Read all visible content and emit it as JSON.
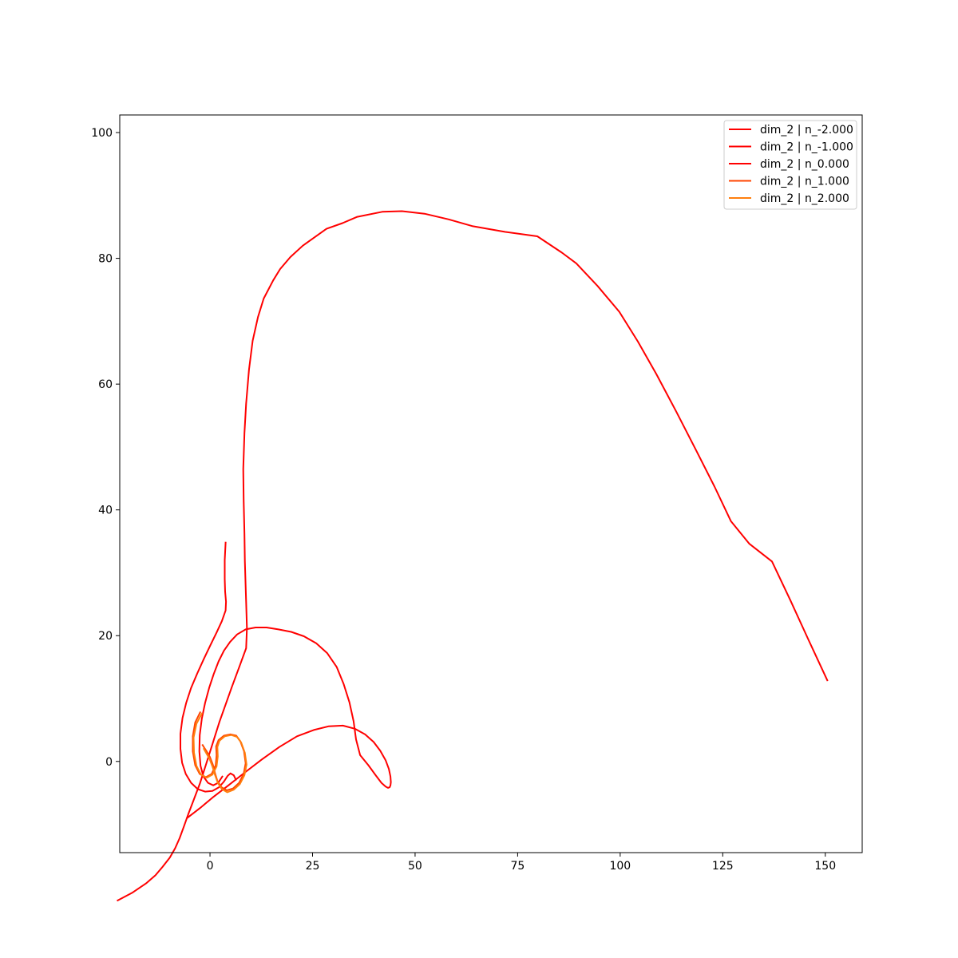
{
  "chart_data": {
    "type": "line",
    "title": "",
    "xlabel": "",
    "ylabel": "",
    "xlim": [
      -22,
      159
    ],
    "ylim": [
      -14.5,
      102.8
    ],
    "x_ticks": [
      0,
      25,
      50,
      75,
      100,
      125,
      150
    ],
    "y_ticks": [
      0,
      20,
      40,
      60,
      80,
      100
    ],
    "x_tick_labels": [
      "0",
      "25",
      "50",
      "75",
      "100",
      "125",
      "150"
    ],
    "y_tick_labels": [
      "0",
      "20",
      "40",
      "60",
      "80",
      "100"
    ],
    "grid": false,
    "legend_position": "top-right",
    "series": [
      {
        "name": "dim_2 | n_-2.000",
        "color": "#ff0000",
        "points": [
          [
            150.5,
            12.9
          ],
          [
            146,
            19.2
          ],
          [
            141.5,
            25.6
          ],
          [
            137,
            31.8
          ],
          [
            131.5,
            34.6
          ],
          [
            127,
            38.2
          ],
          [
            123,
            43.7
          ],
          [
            118.5,
            49.5
          ],
          [
            113.7,
            55.6
          ],
          [
            108.8,
            61.6
          ],
          [
            104.3,
            66.8
          ],
          [
            99.8,
            71.5
          ],
          [
            94.5,
            75.6
          ],
          [
            89.3,
            79.2
          ],
          [
            85.8,
            80.9
          ],
          [
            79.8,
            83.5
          ],
          [
            72.0,
            84.2
          ],
          [
            64.1,
            85.1
          ],
          [
            58.2,
            86.2
          ],
          [
            52.3,
            87.1
          ],
          [
            46.8,
            87.5
          ],
          [
            42.0,
            87.4
          ],
          [
            35.9,
            86.6
          ],
          [
            32.3,
            85.6
          ],
          [
            28.4,
            84.7
          ],
          [
            25.6,
            83.4
          ],
          [
            22.6,
            82.0
          ],
          [
            19.6,
            80.2
          ],
          [
            17.1,
            78.3
          ],
          [
            15.4,
            76.5
          ],
          [
            13.1,
            73.6
          ],
          [
            11.7,
            70.7
          ],
          [
            10.4,
            66.9
          ],
          [
            9.5,
            62.3
          ],
          [
            8.8,
            56.9
          ],
          [
            8.4,
            52.2
          ],
          [
            8.1,
            46.5
          ],
          [
            8.2,
            41.6
          ],
          [
            8.4,
            36.2
          ],
          [
            8.5,
            31.9
          ],
          [
            8.8,
            25.4
          ],
          [
            9.0,
            21.2
          ],
          [
            8.8,
            18.0
          ],
          [
            7.3,
            15.3
          ],
          [
            5.3,
            11.8
          ],
          [
            2.3,
            6.3
          ],
          [
            -0.3,
            0.9
          ],
          [
            -2.4,
            -3.4
          ],
          [
            -3.9,
            -6.0
          ],
          [
            -5.3,
            -8.4
          ],
          [
            -6.4,
            -10.4
          ],
          [
            -7.4,
            -12.2
          ],
          [
            -8.5,
            -13.8
          ],
          [
            -9.8,
            -15.3
          ],
          [
            -11.6,
            -16.8
          ],
          [
            -13.3,
            -18.1
          ],
          [
            -15.6,
            -19.4
          ],
          [
            -19.0,
            -20.9
          ],
          [
            -22.5,
            -22.1
          ]
        ]
      },
      {
        "name": "dim_2 | n_-1.000",
        "color": "#ff0000",
        "points": [
          [
            3.8,
            34.8
          ],
          [
            3.6,
            32.0
          ],
          [
            3.6,
            29.0
          ],
          [
            3.7,
            27.0
          ],
          [
            3.9,
            25.4
          ],
          [
            3.8,
            24.0
          ],
          [
            2.9,
            22.3
          ],
          [
            1.6,
            20.5
          ],
          [
            0.1,
            18.5
          ],
          [
            -1.5,
            16.3
          ],
          [
            -3.1,
            14.0
          ],
          [
            -4.6,
            11.7
          ],
          [
            -5.8,
            9.3
          ],
          [
            -6.7,
            6.9
          ],
          [
            -7.2,
            4.4
          ],
          [
            -7.2,
            2.0
          ],
          [
            -6.8,
            -0.2
          ],
          [
            -5.9,
            -2.0
          ],
          [
            -4.6,
            -3.4
          ],
          [
            -3.0,
            -4.4
          ],
          [
            -1.2,
            -4.8
          ],
          [
            0.6,
            -4.7
          ],
          [
            2.2,
            -4.1
          ],
          [
            3.4,
            -3.2
          ],
          [
            4.3,
            -2.3
          ],
          [
            5.0,
            -1.9
          ],
          [
            5.8,
            -2.2
          ],
          [
            6.3,
            -2.9
          ]
        ]
      },
      {
        "name": "dim_2 | n_0.000",
        "color": "#ff0000",
        "points": [
          [
            -5.6,
            -9.0
          ],
          [
            -2.4,
            -7.4
          ],
          [
            0.9,
            -5.6
          ],
          [
            4.5,
            -3.8
          ],
          [
            8.4,
            -1.8
          ],
          [
            12.6,
            0.3
          ],
          [
            16.9,
            2.3
          ],
          [
            21.2,
            4.0
          ],
          [
            25.3,
            5.0
          ],
          [
            29.0,
            5.6
          ],
          [
            32.4,
            5.7
          ],
          [
            35.3,
            5.2
          ],
          [
            37.8,
            4.3
          ],
          [
            39.9,
            3.1
          ],
          [
            41.5,
            1.7
          ],
          [
            42.8,
            0.2
          ],
          [
            43.6,
            -1.2
          ],
          [
            44.0,
            -2.4
          ],
          [
            44.1,
            -3.3
          ],
          [
            44.0,
            -3.8
          ],
          [
            43.8,
            -4.1
          ],
          [
            43.4,
            -4.2
          ],
          [
            42.8,
            -4.0
          ],
          [
            41.8,
            -3.4
          ],
          [
            40.4,
            -2.2
          ],
          [
            38.6,
            -0.6
          ],
          [
            36.6,
            1.0
          ],
          [
            35.6,
            3.5
          ],
          [
            35.0,
            6.4
          ],
          [
            34.0,
            9.4
          ],
          [
            32.6,
            12.3
          ],
          [
            30.9,
            15.0
          ],
          [
            28.6,
            17.2
          ],
          [
            25.9,
            18.8
          ],
          [
            22.9,
            19.9
          ],
          [
            19.8,
            20.6
          ],
          [
            16.7,
            21.0
          ],
          [
            13.8,
            21.3
          ],
          [
            11.1,
            21.3
          ],
          [
            8.7,
            21.0
          ],
          [
            6.6,
            20.2
          ],
          [
            4.9,
            19.0
          ],
          [
            3.4,
            17.6
          ],
          [
            2.1,
            15.9
          ],
          [
            0.9,
            13.9
          ],
          [
            -0.2,
            11.7
          ],
          [
            -1.2,
            9.3
          ],
          [
            -2.0,
            6.8
          ],
          [
            -2.5,
            4.2
          ],
          [
            -2.6,
            1.6
          ],
          [
            -2.3,
            -0.7
          ],
          [
            -1.6,
            -2.4
          ],
          [
            -0.5,
            -3.4
          ],
          [
            0.8,
            -3.8
          ],
          [
            2.0,
            -3.4
          ],
          [
            3.0,
            -2.4
          ]
        ]
      },
      {
        "name": "dim_2 | n_1.000",
        "color": "#ff4400",
        "points": [
          [
            -2.4,
            7.8
          ],
          [
            -3.6,
            6.2
          ],
          [
            -4.2,
            4.0
          ],
          [
            -4.2,
            1.6
          ],
          [
            -3.6,
            -0.6
          ],
          [
            -2.5,
            -2.0
          ],
          [
            -1.0,
            -2.5
          ],
          [
            0.4,
            -2.0
          ],
          [
            1.4,
            -0.6
          ],
          [
            1.6,
            1.0
          ],
          [
            1.5,
            2.4
          ],
          [
            2.1,
            3.4
          ],
          [
            3.4,
            4.1
          ],
          [
            5.0,
            4.3
          ],
          [
            6.4,
            4.1
          ],
          [
            7.4,
            3.2
          ],
          [
            8.3,
            1.6
          ],
          [
            8.7,
            -0.3
          ],
          [
            8.2,
            -2.0
          ],
          [
            7.1,
            -3.4
          ],
          [
            5.6,
            -4.3
          ],
          [
            4.1,
            -4.6
          ],
          [
            2.8,
            -4.1
          ],
          [
            1.8,
            -3.1
          ],
          [
            1.2,
            -1.8
          ],
          [
            0.7,
            -0.5
          ],
          [
            0.0,
            0.7
          ],
          [
            -0.8,
            1.6
          ],
          [
            -1.4,
            2.2
          ],
          [
            -1.8,
            2.6
          ]
        ]
      },
      {
        "name": "dim_2 | n_2.000",
        "color": "#ff7f0e",
        "points": [
          [
            -2.0,
            7.6
          ],
          [
            -3.3,
            6.0
          ],
          [
            -4.0,
            3.8
          ],
          [
            -3.9,
            1.4
          ],
          [
            -3.3,
            -0.7
          ],
          [
            -2.2,
            -2.1
          ],
          [
            -0.8,
            -2.6
          ],
          [
            0.6,
            -2.1
          ],
          [
            1.6,
            -0.8
          ],
          [
            1.9,
            0.8
          ],
          [
            1.8,
            2.3
          ],
          [
            2.3,
            3.3
          ],
          [
            3.6,
            4.0
          ],
          [
            5.2,
            4.2
          ],
          [
            6.6,
            3.9
          ],
          [
            7.6,
            3.0
          ],
          [
            8.5,
            1.4
          ],
          [
            8.9,
            -0.5
          ],
          [
            8.4,
            -2.2
          ],
          [
            7.3,
            -3.6
          ],
          [
            5.8,
            -4.5
          ],
          [
            4.2,
            -4.9
          ],
          [
            2.9,
            -4.4
          ],
          [
            1.9,
            -3.4
          ],
          [
            1.2,
            -2.1
          ],
          [
            0.6,
            -0.8
          ],
          [
            -0.1,
            0.4
          ],
          [
            -0.9,
            1.3
          ],
          [
            -1.5,
            2.0
          ]
        ]
      }
    ]
  }
}
